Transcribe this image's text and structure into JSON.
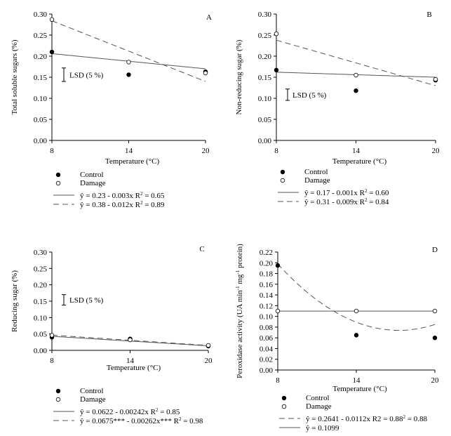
{
  "chart_data": [
    {
      "type": "scatter",
      "panel": "A",
      "xlabel": "Temperature (°C)",
      "ylabel": "Total soluble sugars (%)",
      "x_ticks": [
        "8",
        "14",
        "20"
      ],
      "y_ticks": [
        "0.00",
        "0.05",
        "0.10",
        "0.15",
        "0.20",
        "0.25",
        "0.30"
      ],
      "xlim": [
        8,
        20
      ],
      "ylim": [
        0,
        0.3
      ],
      "lsd_label": "LSD (5 %)",
      "lsd_range": [
        0.14,
        0.172
      ],
      "series": [
        {
          "name": "Control",
          "marker": "filled",
          "x": [
            8,
            14,
            20
          ],
          "y": [
            0.21,
            0.156,
            0.163
          ],
          "fit": {
            "style": "solid",
            "label": "ŷ = 0.23 - 0.003x R",
            "sup": "2",
            "tail": " = 0.65",
            "coef": [
              0.23,
              -0.003
            ]
          }
        },
        {
          "name": "Damage",
          "marker": "open",
          "x": [
            8,
            14,
            20
          ],
          "y": [
            0.287,
            0.186,
            0.16
          ],
          "fit": {
            "style": "dashed",
            "label": "ŷ = 0.38 - 0.012x R",
            "sup": "2",
            "tail": " = 0.89",
            "coef": [
              0.38,
              -0.012
            ]
          }
        }
      ]
    },
    {
      "type": "scatter",
      "panel": "B",
      "xlabel": "Temperature (°C)",
      "ylabel": "Non-reducing sugar (%)",
      "x_ticks": [
        "8",
        "14",
        "20"
      ],
      "y_ticks": [
        "0.00",
        "0.05",
        "0.10",
        "0.15",
        "0.20",
        "0.25",
        "0.30"
      ],
      "xlim": [
        8,
        20
      ],
      "ylim": [
        0,
        0.3
      ],
      "lsd_label": "LSD (5 %)",
      "lsd_range": [
        0.095,
        0.122
      ],
      "series": [
        {
          "name": "Control",
          "marker": "filled",
          "x": [
            8,
            14,
            20
          ],
          "y": [
            0.167,
            0.118,
            0.143
          ],
          "fit": {
            "style": "solid",
            "label": "ŷ = 0.17 - 0.001x R",
            "sup": "2",
            "tail": " = 0.60",
            "coef": [
              0.17,
              -0.001
            ]
          }
        },
        {
          "name": "Damage",
          "marker": "open",
          "x": [
            8,
            14,
            20
          ],
          "y": [
            0.253,
            0.155,
            0.145
          ],
          "fit": {
            "style": "dashed",
            "label": "ŷ = 0.31 - 0.009x R",
            "sup": "2",
            "tail": " = 0.84",
            "coef": [
              0.31,
              -0.009
            ]
          }
        }
      ]
    },
    {
      "type": "scatter",
      "panel": "C",
      "xlabel": "Temperature (°C)",
      "ylabel": "Reducing sugar (%)",
      "x_ticks": [
        "8",
        "14",
        "20"
      ],
      "y_ticks": [
        "0.00",
        "0.05",
        "0.10",
        "0.15",
        "0.20",
        "0.25",
        "0.30"
      ],
      "xlim": [
        8,
        20
      ],
      "ylim": [
        0,
        0.3
      ],
      "lsd_label": "LSD (5 %)",
      "lsd_range": [
        0.138,
        0.17
      ],
      "series": [
        {
          "name": "Control",
          "marker": "filled",
          "x": [
            8,
            14,
            20
          ],
          "y": [
            0.04,
            0.035,
            0.013
          ],
          "fit": {
            "style": "solid",
            "label": "ŷ = 0.0622 - 0.00242x R",
            "sup": "2",
            "tail": " = 0.85",
            "coef": [
              0.0622,
              -0.00242
            ]
          }
        },
        {
          "name": "Damage",
          "marker": "open",
          "x": [
            8,
            14,
            20
          ],
          "y": [
            0.046,
            0.032,
            0.015
          ],
          "fit": {
            "style": "dashed",
            "label": "ŷ = 0.0675*** - 0.00262x*** R",
            "sup": "2",
            "tail": " = 0.98",
            "coef": [
              0.0675,
              -0.00262
            ]
          }
        }
      ]
    },
    {
      "type": "scatter",
      "panel": "D",
      "xlabel": "Temperature (°C)",
      "ylabel": "Peroxidase activity (UA min",
      "ylabel_sup1": "-1",
      "ylabel_mid": " mg",
      "ylabel_sup2": "-1",
      "ylabel_tail": " protein)",
      "x_ticks": [
        "8",
        "14",
        "20"
      ],
      "y_ticks": [
        "0.00",
        "0.02",
        "0.04",
        "0.06",
        "0.08",
        "0.10",
        "0.12",
        "0.14",
        "0.16",
        "0.18",
        "0.20",
        "0.22"
      ],
      "xlim": [
        8,
        20
      ],
      "ylim": [
        0,
        0.22
      ],
      "series": [
        {
          "name": "Control",
          "marker": "filled",
          "x": [
            8,
            14,
            20
          ],
          "y": [
            0.195,
            0.065,
            0.06
          ],
          "fit": {
            "style": "dashed",
            "label": "ŷ = 0.2641 - 0.0112x R2 = 0.88",
            "sup": "2",
            "tail": " = 0.88",
            "poly": [
              0.505,
              -0.05,
              0.00145
            ]
          }
        },
        {
          "name": "Damage",
          "marker": "open",
          "x": [
            8,
            14,
            20
          ],
          "y": [
            0.11,
            0.11,
            0.11
          ],
          "fit": {
            "style": "solid",
            "label": "ŷ = 0.1099",
            "sup": "",
            "tail": "",
            "coef": [
              0.1099,
              0
            ]
          }
        }
      ]
    }
  ]
}
